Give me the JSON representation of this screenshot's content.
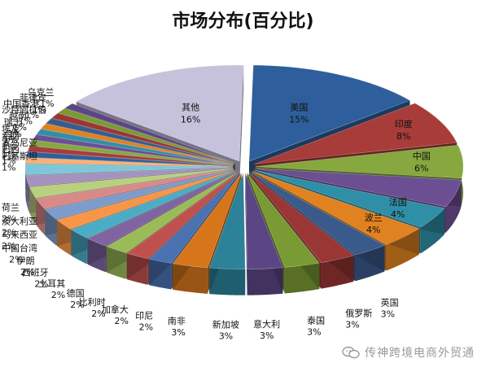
{
  "chart_data": {
    "type": "pie",
    "title": "市场分布(百分比)",
    "slices": [
      {
        "label": "美国",
        "value_label": "15%",
        "value": 15,
        "color": "#2e5f9c"
      },
      {
        "label": "印度",
        "value_label": "8%",
        "value": 8,
        "color": "#a83c39"
      },
      {
        "label": "中国",
        "value_label": "6%",
        "value": 6,
        "color": "#86a83f"
      },
      {
        "label": "",
        "value_label": "",
        "value": 5,
        "color": "#6c4f92"
      },
      {
        "label": "法国",
        "value_label": "4%",
        "value": 4,
        "color": "#2f8fa6"
      },
      {
        "label": "波兰",
        "value_label": "4%",
        "value": 4,
        "color": "#e0821f"
      },
      {
        "label": "英国",
        "value_label": "3%",
        "value": 3,
        "color": "#3b5a8c"
      },
      {
        "label": "俄罗斯",
        "value_label": "3%",
        "value": 3,
        "color": "#9a3634"
      },
      {
        "label": "泰国",
        "value_label": "3%",
        "value": 3,
        "color": "#7a9a34"
      },
      {
        "label": "意大利",
        "value_label": "3%",
        "value": 3,
        "color": "#5c4585"
      },
      {
        "label": "新加坡",
        "value_label": "3%",
        "value": 3,
        "color": "#2b8299"
      },
      {
        "label": "南非",
        "value_label": "3%",
        "value": 3,
        "color": "#d6751a"
      },
      {
        "label": "印尼",
        "value_label": "2%",
        "value": 2,
        "color": "#4a72b0"
      },
      {
        "label": "加拿大",
        "value_label": "2%",
        "value": 2,
        "color": "#c0504d"
      },
      {
        "label": "比利时",
        "value_label": "2%",
        "value": 2,
        "color": "#9bbb59"
      },
      {
        "label": "德国",
        "value_label": "2%",
        "value": 2,
        "color": "#8064a2"
      },
      {
        "label": "土耳其",
        "value_label": "2%",
        "value": 2,
        "color": "#4bacc6"
      },
      {
        "label": "西班牙",
        "value_label": "2%",
        "value": 2,
        "color": "#f79646"
      },
      {
        "label": "伊朗",
        "value_label": "2%",
        "value": 2,
        "color": "#7e9ccb"
      },
      {
        "label": "中国台湾",
        "value_label": "2%",
        "value": 2,
        "color": "#d98a88"
      },
      {
        "label": "马来西亚",
        "value_label": "2%",
        "value": 2,
        "color": "#b9d07f"
      },
      {
        "label": "澳大利亚",
        "value_label": "2%",
        "value": 2,
        "color": "#a592bf"
      },
      {
        "label": "荷兰",
        "value_label": "2%",
        "value": 2,
        "color": "#7fc6d8"
      },
      {
        "label": "巴基斯坦",
        "value_label": "1%",
        "value": 1,
        "color": "#f9b174"
      },
      {
        "label": "巴西",
        "value_label": "1%",
        "value": 1,
        "color": "#2e5f9c"
      },
      {
        "label": "罗马尼亚",
        "value_label": "1%",
        "value": 1,
        "color": "#a83c39"
      },
      {
        "label": "希腊",
        "value_label": "1%",
        "value": 1,
        "color": "#86a83f"
      },
      {
        "label": "埃及",
        "value_label": "1%",
        "value": 1,
        "color": "#6c4f92"
      },
      {
        "label": "瑞士",
        "value_label": "1%",
        "value": 1,
        "color": "#2f8fa6"
      },
      {
        "label": "越南",
        "value_label": "1%",
        "value": 1,
        "color": "#e0821f"
      },
      {
        "label": "沙特阿拉伯",
        "value_label": "1%",
        "value": 1,
        "color": "#3b5a8c"
      },
      {
        "label": "中国香港",
        "value_label": "1%",
        "value": 1,
        "color": "#9a3634"
      },
      {
        "label": "菲律宾",
        "value_label": "1%",
        "value": 1,
        "color": "#7a9a34"
      },
      {
        "label": "乌克兰",
        "value_label": "1%",
        "value": 1,
        "color": "#5c4585"
      },
      {
        "label": "其他",
        "value_label": "16%",
        "value": 16,
        "color": "#c7c2dc"
      }
    ]
  },
  "watermark": "传神跨境电商外贸通"
}
